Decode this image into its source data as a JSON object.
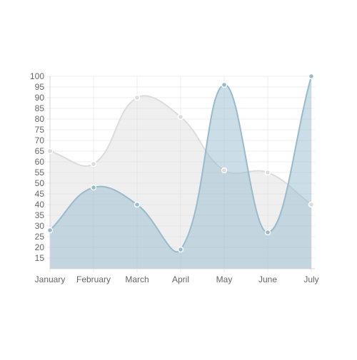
{
  "chart_data": {
    "type": "area",
    "categories": [
      "January",
      "February",
      "March",
      "April",
      "May",
      "June",
      "July"
    ],
    "y_ticks": [
      15,
      20,
      25,
      30,
      35,
      40,
      45,
      50,
      55,
      60,
      65,
      70,
      75,
      80,
      85,
      90,
      95,
      100
    ],
    "ylim": [
      10,
      100
    ],
    "grid": true,
    "smooth": true,
    "title": "",
    "xlabel": "",
    "ylabel": "",
    "series": [
      {
        "values": [
          65,
          59,
          90,
          81,
          56,
          55,
          40
        ],
        "fill_color": "#dcdcdc",
        "line_color": "#dcdcdc",
        "point_color": "#dcdcdc"
      },
      {
        "values": [
          28,
          48,
          40,
          19,
          96,
          27,
          100
        ],
        "fill_color": "#97bbcd",
        "line_color": "#97bbcd",
        "point_color": "#97bbcd"
      }
    ]
  }
}
